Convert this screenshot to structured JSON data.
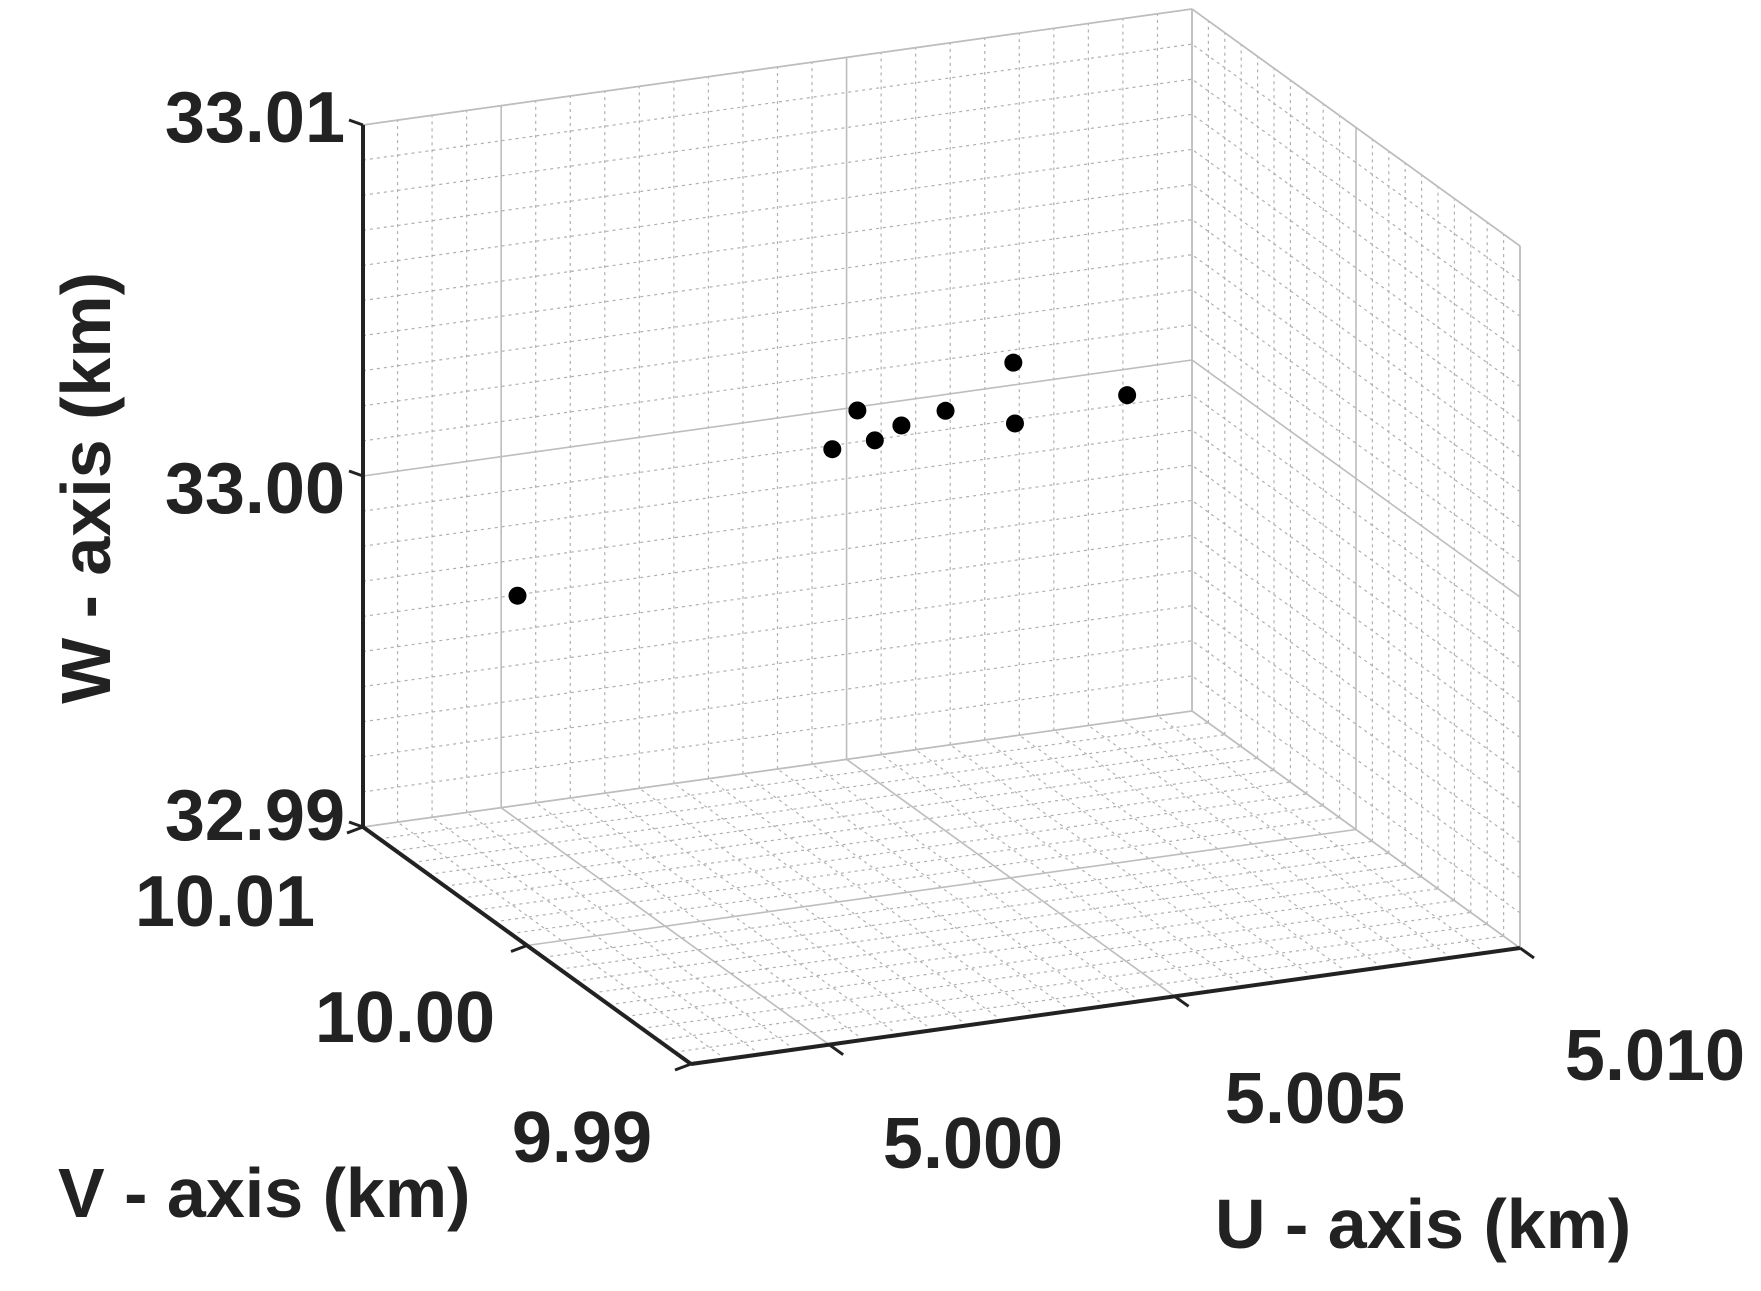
{
  "chart_data": {
    "type": "scatter",
    "dimensions": 3,
    "xlabel": "U - axis (km)",
    "ylabel": "V - axis (km)",
    "zlabel": "W - axis (km)",
    "xlim": [
      4.998,
      5.01
    ],
    "ylim": [
      9.99,
      10.01
    ],
    "zlim": [
      32.99,
      33.01
    ],
    "x_ticks": [
      "5.000",
      "5.005",
      "5.010"
    ],
    "y_ticks": [
      "9.99",
      "10.00",
      "10.01"
    ],
    "z_ticks": [
      "32.99",
      "33.00",
      "33.01"
    ],
    "grid": true,
    "minor_grid": true,
    "marker_color": "#000000",
    "points": [
      {
        "x": 4.9981,
        "y": 10.001,
        "z": 32.9996
      },
      {
        "x": 5.0072,
        "y": 10.0091,
        "z": 33.001
      },
      {
        "x": 5.0052,
        "y": 10.0075,
        "z": 33.0003
      },
      {
        "x": 5.0048,
        "y": 10.0085,
        "z": 33.0005
      },
      {
        "x": 5.0042,
        "y": 10.0075,
        "z": 32.9999
      },
      {
        "x": 5.0051,
        "y": 10.0087,
        "z": 32.9995
      },
      {
        "x": 5.0061,
        "y": 10.0086,
        "z": 33.0001
      },
      {
        "x": 5.0088,
        "y": 10.0089,
        "z": 32.9997
      },
      {
        "x": 5.0072,
        "y": 10.009,
        "z": 32.9993
      }
    ]
  }
}
